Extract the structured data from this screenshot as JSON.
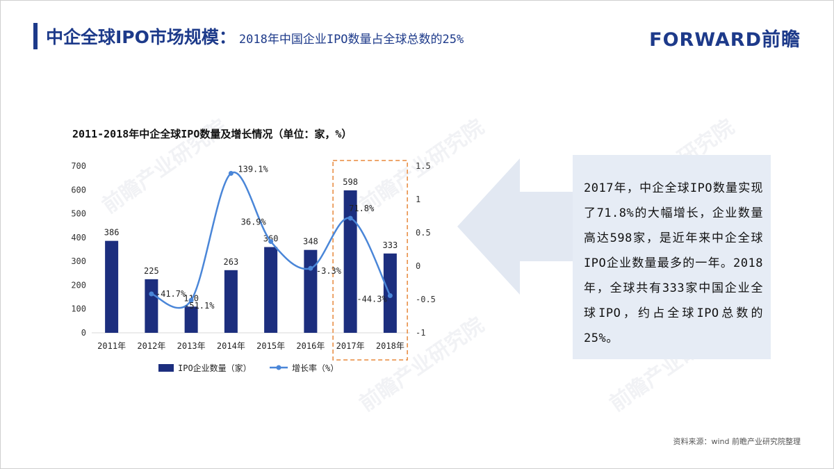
{
  "header": {
    "title_main": "中企全球IPO市场规模：",
    "title_sub": "2018年中国企业IPO数量占全球总数的25%",
    "logo": "FORWARD前瞻"
  },
  "callout": {
    "text": "2017年，中企全球IPO数量实现了71.8%的大幅增长，企业数量高达598家，是近年来中企全球IPO企业数量最多的一年。2018年，全球共有333家中国企业全球IPO，约占全球IPO总数的25%。"
  },
  "source": "资料来源：wind 前瞻产业研究院整理",
  "colors": {
    "bar": "#1c2e7e",
    "line": "#4a86d8",
    "accent": "#1d3a8a",
    "highlight": "#e8883a",
    "callout_bg": "#e6ecf5",
    "arrow": "#e2e8f2"
  },
  "chart_data": {
    "type": "bar",
    "title": "2011-2018年中企全球IPO数量及增长情况（单位：家，%）",
    "categories": [
      "2011年",
      "2012年",
      "2013年",
      "2014年",
      "2015年",
      "2016年",
      "2017年",
      "2018年"
    ],
    "series": [
      {
        "name": "IPO企业数量（家）",
        "type": "bar",
        "axis": "left",
        "values": [
          386,
          225,
          110,
          263,
          360,
          348,
          598,
          333
        ],
        "labels": [
          "386",
          "225",
          "110",
          "263",
          "360",
          "348",
          "598",
          "333"
        ]
      },
      {
        "name": "增长率（%）",
        "type": "line",
        "axis": "right",
        "values": [
          null,
          -0.417,
          -0.511,
          1.391,
          0.369,
          -0.033,
          0.718,
          -0.443
        ],
        "labels": [
          "",
          "-41.7%",
          "-51.1%",
          "139.1%",
          "36.9%",
          "-3.3%",
          "71.8%",
          "-44.3%"
        ]
      }
    ],
    "y_left": {
      "min": 0,
      "max": 700,
      "ticks": [
        "0",
        "100",
        "200",
        "300",
        "400",
        "500",
        "600",
        "700"
      ]
    },
    "y_right": {
      "min": -1,
      "max": 1.5,
      "ticks": [
        "-1",
        "-0.5",
        "0",
        "0.5",
        "1",
        "1.5"
      ]
    },
    "highlight_category": "2017年",
    "legend": "bottom"
  }
}
